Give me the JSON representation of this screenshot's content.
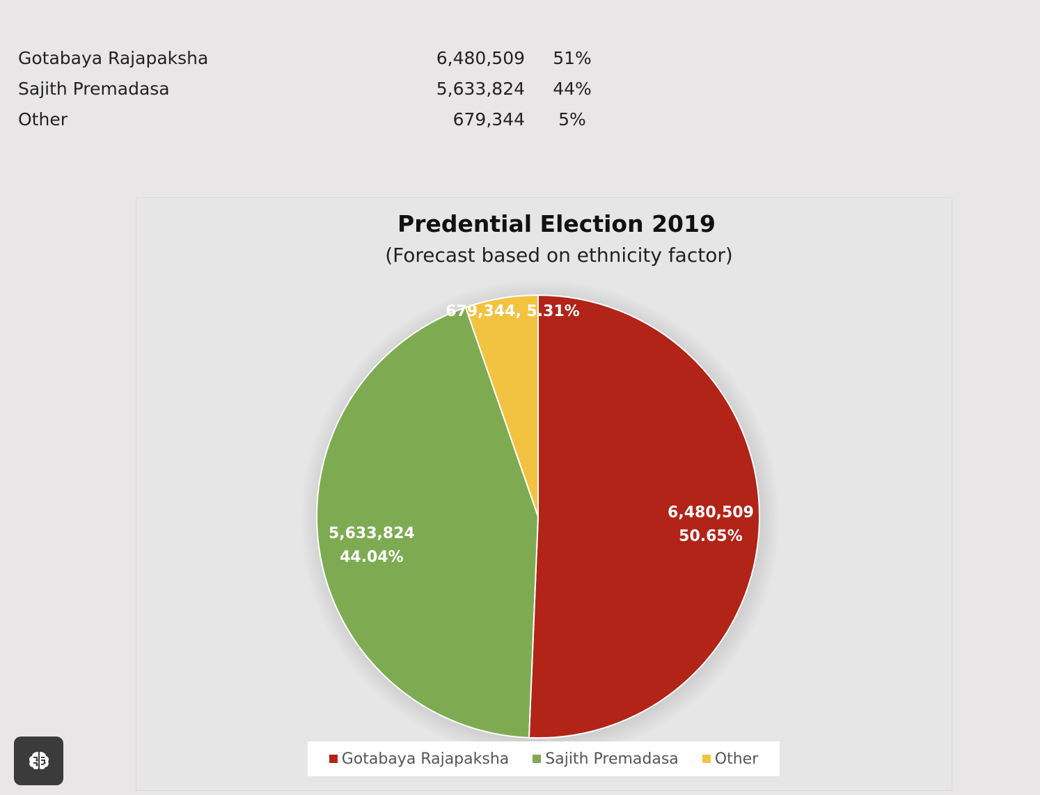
{
  "table": {
    "rows": [
      {
        "name": "Gotabaya Rajapaksha",
        "votes": "6,480,509",
        "pct": "51%"
      },
      {
        "name": "Sajith Premadasa",
        "votes": "5,633,824",
        "pct": "44%"
      },
      {
        "name": "Other",
        "votes": "679,344",
        "pct": "5%"
      }
    ]
  },
  "chart_data": {
    "type": "pie",
    "title": "Predential Election 2019",
    "subtitle": "(Forecast based on ethnicity factor)",
    "slices": [
      {
        "label": "Gotabaya Rajapaksha",
        "value": 6480509,
        "value_text": "6,480,509",
        "percent_text": "50.65%",
        "color": "#b22318"
      },
      {
        "label": "Sajith Premadasa",
        "value": 5633824,
        "value_text": "5,633,824",
        "percent_text": "44.04%",
        "color": "#7eab52"
      },
      {
        "label": "Other",
        "value": 679344,
        "value_text": "679,344",
        "percent_text": "5.31%",
        "color": "#f2c340"
      }
    ],
    "other_label_text": "679,344, 5.31%",
    "legend_position": "bottom"
  },
  "brain_button": {
    "icon": "brain-icon"
  }
}
